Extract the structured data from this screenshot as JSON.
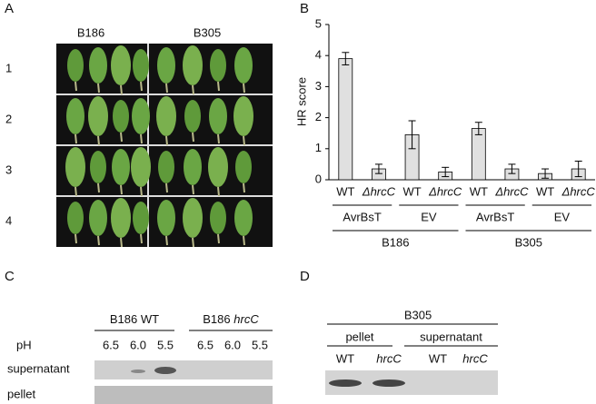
{
  "panel_a": {
    "label": "A",
    "columns": [
      "B186",
      "B305"
    ],
    "rows": [
      "1",
      "2",
      "3",
      "4"
    ]
  },
  "chart_data": {
    "type": "bar",
    "label": "B",
    "ylabel": "HR score",
    "categories": [
      "WT",
      "ΔhrcC",
      "WT",
      "ΔhrcC",
      "WT",
      "ΔhrcC",
      "WT",
      "ΔhrcC"
    ],
    "values": [
      3.9,
      0.35,
      1.45,
      0.25,
      1.65,
      0.35,
      0.2,
      0.35
    ],
    "errors": [
      0.2,
      0.15,
      0.45,
      0.15,
      0.2,
      0.15,
      0.15,
      0.25
    ],
    "color": "#e0e0e0",
    "ylim": [
      0,
      5
    ],
    "yticks": [
      0,
      1,
      2,
      3,
      4,
      5
    ],
    "groups": [
      "AvrBsT",
      "EV",
      "AvrBsT",
      "EV"
    ],
    "strains": [
      "B186",
      "B305"
    ]
  },
  "panel_c": {
    "label": "C",
    "headers": [
      {
        "strain": "B186",
        "genotype": "WT"
      },
      {
        "strain": "B186",
        "genotype": "hrcC"
      }
    ],
    "ph_label": "pH",
    "ph": [
      "6.5",
      "6.0",
      "5.5",
      "6.5",
      "6.0",
      "5.5"
    ],
    "rows": [
      "supernatant",
      "pellet"
    ]
  },
  "panel_d": {
    "label": "D",
    "title": "B305",
    "groups": [
      "pellet",
      "supernatant"
    ],
    "lanes": [
      "WT",
      "hrcC",
      "WT",
      "hrcC"
    ]
  }
}
